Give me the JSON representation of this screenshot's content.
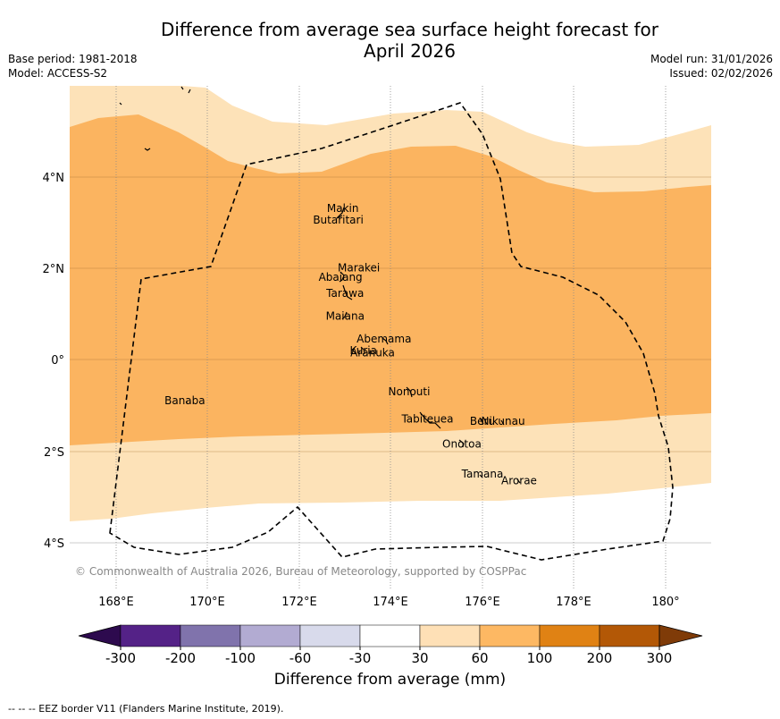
{
  "title": "Difference from average sea surface height forecast for April 2026",
  "title_line1": "Difference from average sea surface height forecast for",
  "title_line2": "April 2026",
  "meta_left": {
    "base_period": "Base period: 1981-2018",
    "model": "Model: ACCESS-S2"
  },
  "meta_right": {
    "model_run": "Model run: 31/01/2026",
    "issued": "Issued: 02/02/2026"
  },
  "map": {
    "lon_range": [
      167,
      181
    ],
    "lat_range": [
      -5,
      6
    ],
    "x_ticks": [
      "168°E",
      "170°E",
      "172°E",
      "174°E",
      "176°E",
      "178°E",
      "180°"
    ],
    "y_ticks": [
      "4°N",
      "2°N",
      "0°",
      "2°S",
      "4°S"
    ],
    "copyright": "© Commonwealth of Australia 2026, Bureau of Meteorology, supported by COSPPac",
    "places": [
      {
        "name": "Makin",
        "lon": 172.95,
        "lat": 3.3
      },
      {
        "name": "Butaritari",
        "lon": 172.85,
        "lat": 3.05
      },
      {
        "name": "Marakei",
        "lon": 173.3,
        "lat": 2.0
      },
      {
        "name": "Abaiang",
        "lon": 172.9,
        "lat": 1.8
      },
      {
        "name": "Tarawa",
        "lon": 173.0,
        "lat": 1.45
      },
      {
        "name": "Maiana",
        "lon": 173.0,
        "lat": 0.95
      },
      {
        "name": "Abemama",
        "lon": 173.85,
        "lat": 0.45
      },
      {
        "name": "Kuria",
        "lon": 173.4,
        "lat": 0.2
      },
      {
        "name": "Aranuka",
        "lon": 173.6,
        "lat": 0.15
      },
      {
        "name": "Banaba",
        "lon": 169.5,
        "lat": -0.9
      },
      {
        "name": "Nonouti",
        "lon": 174.4,
        "lat": -0.7
      },
      {
        "name": "Tabiteuea",
        "lon": 174.8,
        "lat": -1.3
      },
      {
        "name": "Beru",
        "lon": 176.0,
        "lat": -1.35
      },
      {
        "name": "Nikunau",
        "lon": 176.45,
        "lat": -1.35
      },
      {
        "name": "Onotoa",
        "lon": 175.55,
        "lat": -1.85
      },
      {
        "name": "Tamana",
        "lon": 176.0,
        "lat": -2.5
      },
      {
        "name": "Arorae",
        "lon": 176.8,
        "lat": -2.65
      }
    ],
    "colors": {
      "band_30_60": "#fde2b8",
      "band_60_100": "#fbb460",
      "grid": "#8a8a8a"
    }
  },
  "colorbar": {
    "title": "Difference from average (mm)",
    "tick_labels": [
      "-300",
      "-200",
      "-100",
      "-60",
      "-30",
      "30",
      "60",
      "100",
      "200",
      "300"
    ],
    "colors": [
      "#2d0a4e",
      "#542287",
      "#8073ac",
      "#b2abd2",
      "#d8daeb",
      "#ffffff",
      "#fee0b6",
      "#fdb863",
      "#e08214",
      "#b35806",
      "#7f3b08"
    ]
  },
  "footnote": "-- -- -- EEZ border V11 (Flanders Marine Institute, 2019)."
}
